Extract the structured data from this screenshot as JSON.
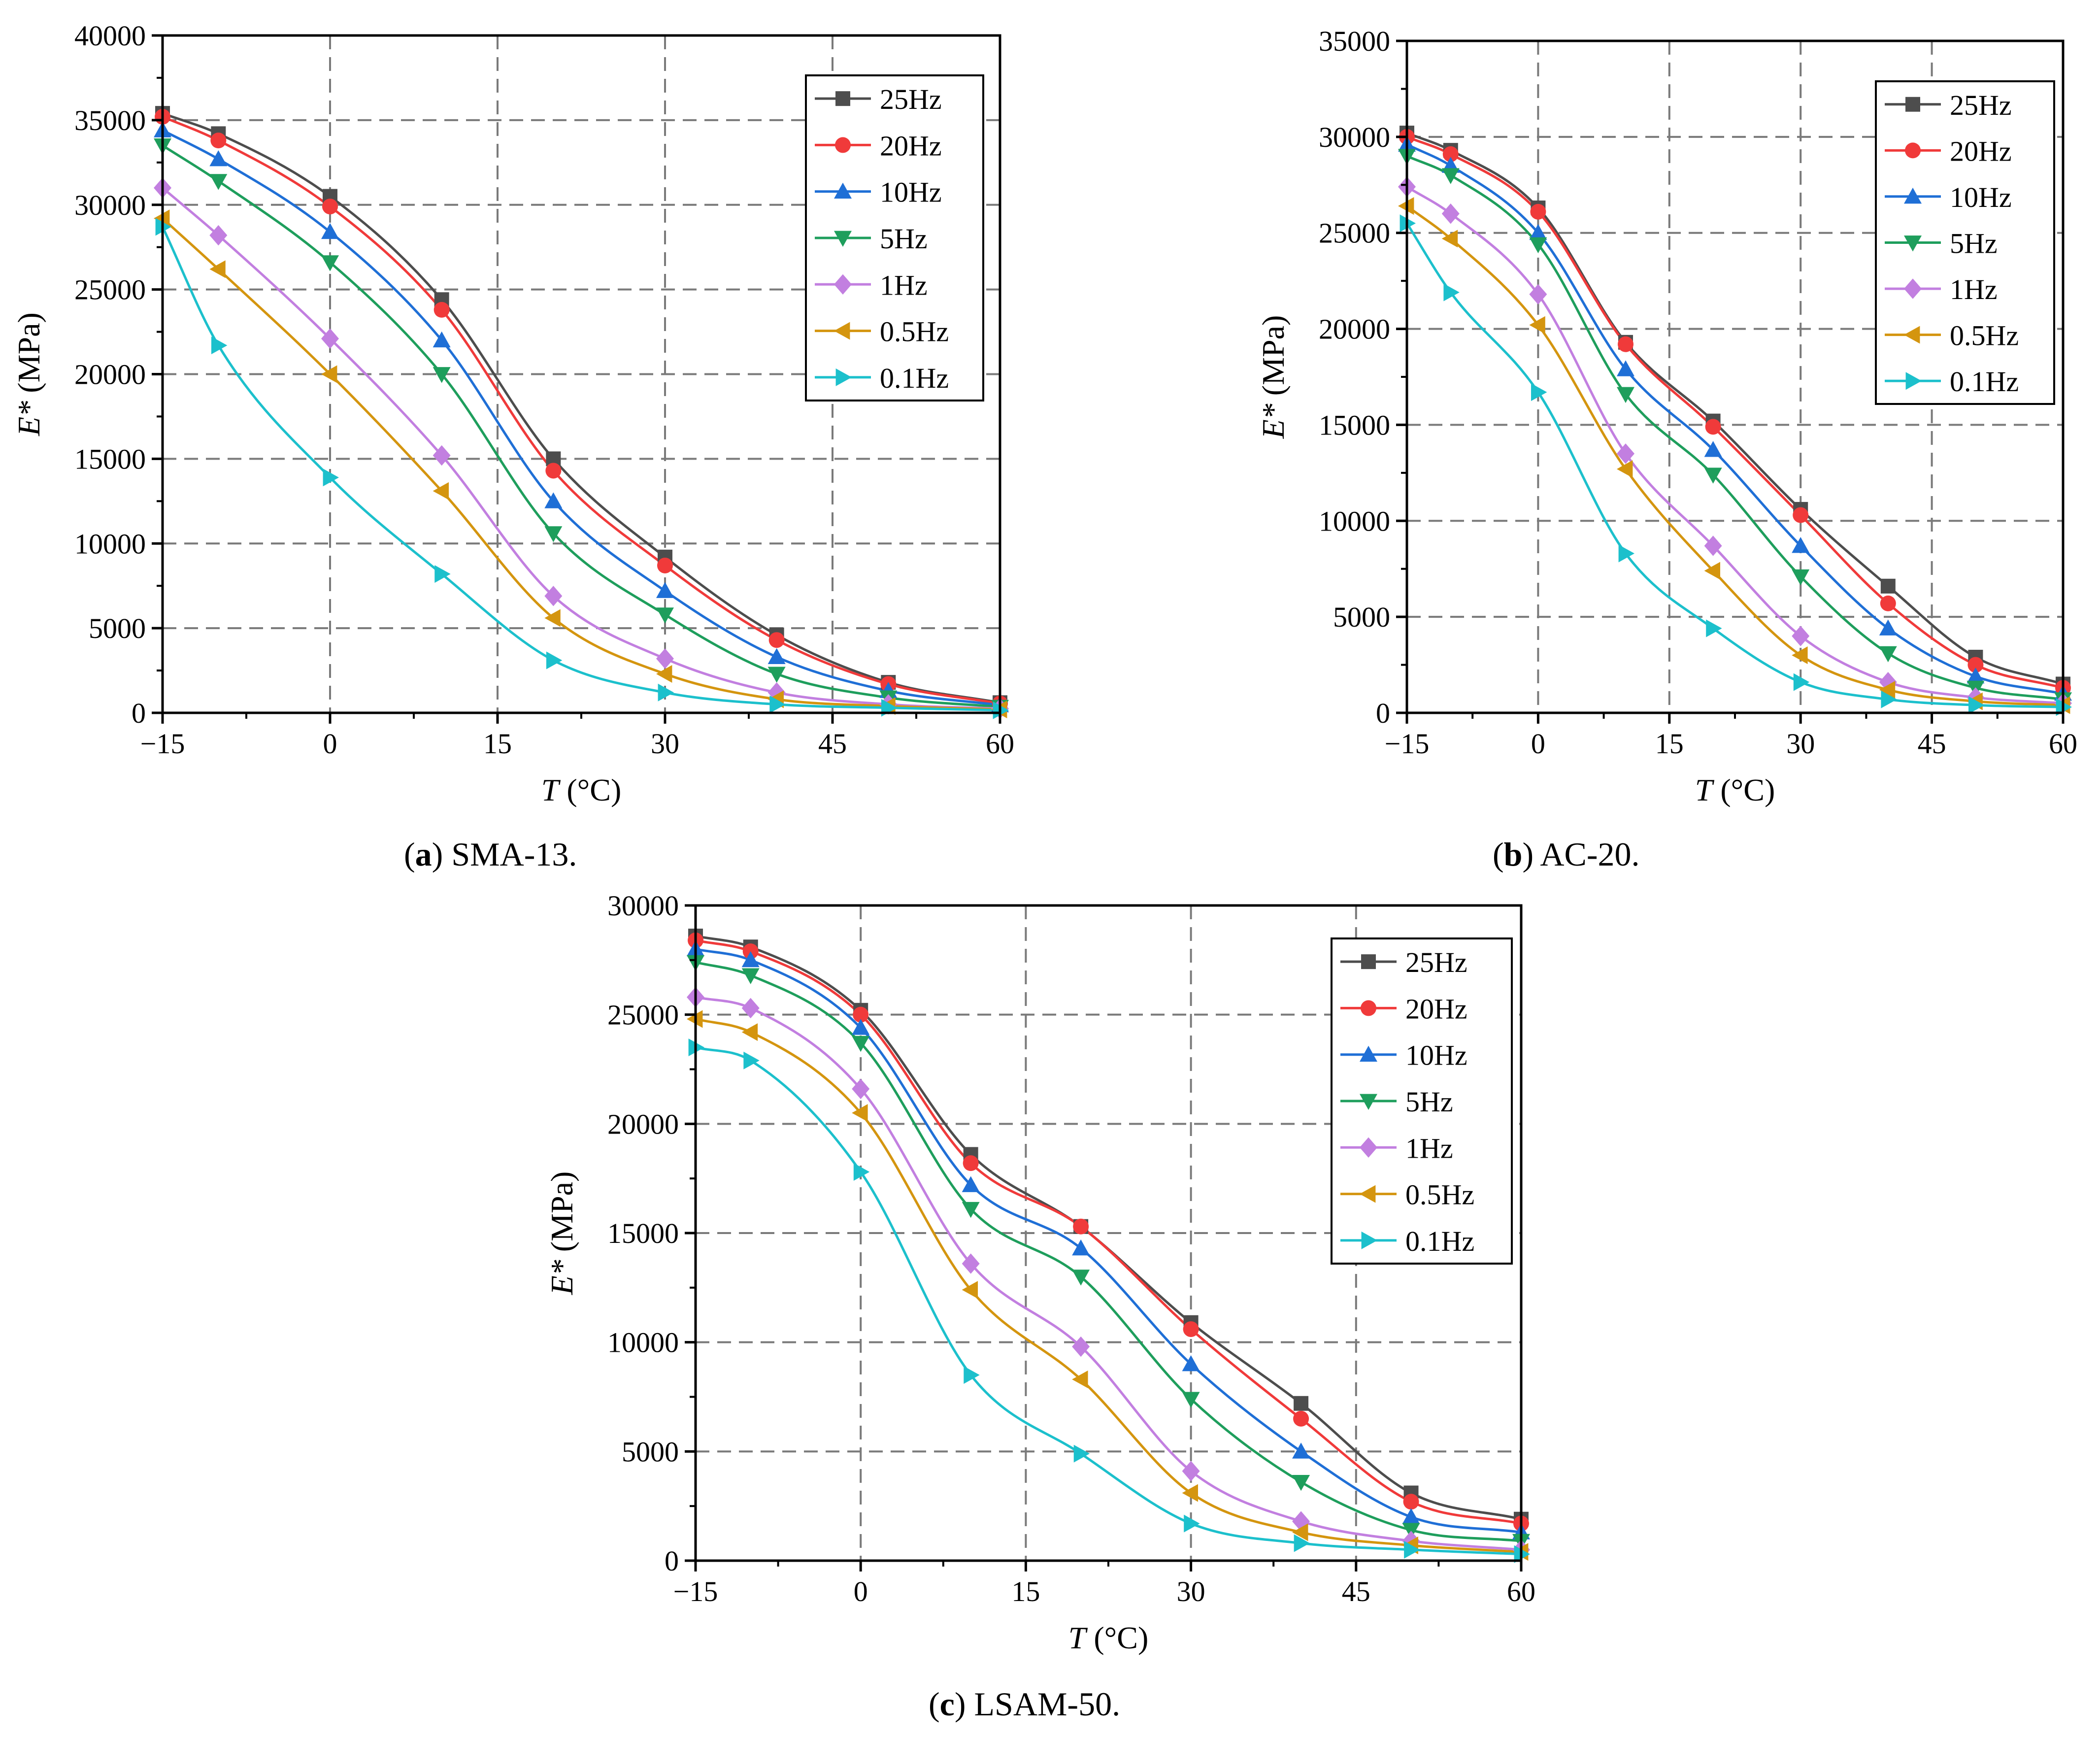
{
  "figure": {
    "legend_labels": [
      "25Hz",
      "20Hz",
      "10Hz",
      "5Hz",
      "1Hz",
      "0.5Hz",
      "0.1Hz"
    ],
    "series_styles": [
      {
        "name": "25Hz",
        "color": "#4d4d4d",
        "marker": "square"
      },
      {
        "name": "20Hz",
        "color": "#f03a3a",
        "marker": "circle"
      },
      {
        "name": "10Hz",
        "color": "#1f6fd6",
        "marker": "triangle-up"
      },
      {
        "name": "5Hz",
        "color": "#1e9e5c",
        "marker": "triangle-down"
      },
      {
        "name": "1Hz",
        "color": "#c27fe0",
        "marker": "diamond"
      },
      {
        "name": "0.5Hz",
        "color": "#d4950f",
        "marker": "triangle-left"
      },
      {
        "name": "0.1Hz",
        "color": "#1cc0cc",
        "marker": "triangle-right"
      }
    ]
  },
  "chart_data": [
    {
      "type": "line",
      "panel": "a",
      "caption_letter": "a",
      "caption_text": " SMA-13.",
      "xlabel_italic": "T",
      "xlabel_unit": " (°C)",
      "ylabel_italic": "E*",
      "ylabel_unit": " (MPa)",
      "x": [
        -15,
        -10,
        0,
        10,
        20,
        30,
        40,
        50,
        60
      ],
      "xlim": [
        -15,
        60
      ],
      "ylim": [
        0,
        40000
      ],
      "xticks": [
        -15,
        0,
        15,
        30,
        45,
        60
      ],
      "xtick_labels": [
        "−15",
        "0",
        "15",
        "30",
        "45",
        "60"
      ],
      "yticks": [
        0,
        5000,
        10000,
        15000,
        20000,
        25000,
        30000,
        35000,
        40000
      ],
      "ytick_labels": [
        "0",
        "5000",
        "10000",
        "15000",
        "20000",
        "25000",
        "30000",
        "35000",
        "40000"
      ],
      "grid": true,
      "legend_position": "top-right",
      "series": [
        {
          "name": "25Hz",
          "values": [
            35400,
            34200,
            30500,
            24400,
            15000,
            9200,
            4600,
            1800,
            600
          ]
        },
        {
          "name": "20Hz",
          "values": [
            35200,
            33800,
            29900,
            23800,
            14300,
            8700,
            4300,
            1700,
            550
          ]
        },
        {
          "name": "10Hz",
          "values": [
            34400,
            32700,
            28400,
            22000,
            12500,
            7200,
            3300,
            1300,
            450
          ]
        },
        {
          "name": "5Hz",
          "values": [
            33500,
            31400,
            26600,
            20000,
            10600,
            5800,
            2300,
            900,
            350
          ]
        },
        {
          "name": "1Hz",
          "values": [
            31000,
            28200,
            22100,
            15200,
            6900,
            3200,
            1200,
            500,
            250
          ]
        },
        {
          "name": "0.5Hz",
          "values": [
            29200,
            26200,
            20000,
            13100,
            5600,
            2300,
            800,
            400,
            200
          ]
        },
        {
          "name": "0.1Hz",
          "values": [
            28700,
            21700,
            13900,
            8200,
            3100,
            1200,
            500,
            300,
            150
          ]
        }
      ]
    },
    {
      "type": "line",
      "panel": "b",
      "caption_letter": "b",
      "caption_text": " AC-20.",
      "xlabel_italic": "T",
      "xlabel_unit": " (°C)",
      "ylabel_italic": "E*",
      "ylabel_unit": " (MPa)",
      "x": [
        -15,
        -10,
        0,
        10,
        20,
        30,
        40,
        50,
        60
      ],
      "xlim": [
        -15,
        60
      ],
      "ylim": [
        0,
        35000
      ],
      "xticks": [
        -15,
        0,
        15,
        30,
        45,
        60
      ],
      "xtick_labels": [
        "−15",
        "0",
        "15",
        "30",
        "45",
        "60"
      ],
      "yticks": [
        0,
        5000,
        10000,
        15000,
        20000,
        25000,
        30000,
        35000
      ],
      "ytick_labels": [
        "0",
        "5000",
        "10000",
        "15000",
        "20000",
        "25000",
        "30000",
        "35000"
      ],
      "grid": true,
      "legend_position": "top-right",
      "series": [
        {
          "name": "25Hz",
          "values": [
            30200,
            29300,
            26300,
            19300,
            15200,
            10600,
            6600,
            2900,
            1500
          ]
        },
        {
          "name": "20Hz",
          "values": [
            30000,
            29100,
            26100,
            19200,
            14900,
            10300,
            5700,
            2500,
            1300
          ]
        },
        {
          "name": "10Hz",
          "values": [
            29600,
            28500,
            25000,
            17900,
            13700,
            8700,
            4400,
            1900,
            1000
          ]
        },
        {
          "name": "5Hz",
          "values": [
            29000,
            28000,
            24400,
            16600,
            12400,
            7100,
            3100,
            1300,
            700
          ]
        },
        {
          "name": "1Hz",
          "values": [
            27400,
            26000,
            21800,
            13500,
            8700,
            4000,
            1600,
            800,
            500
          ]
        },
        {
          "name": "0.5Hz",
          "values": [
            26400,
            24700,
            20200,
            12700,
            7400,
            3000,
            1200,
            600,
            400
          ]
        },
        {
          "name": "0.1Hz",
          "values": [
            25500,
            21900,
            16700,
            8300,
            4400,
            1600,
            700,
            400,
            300
          ]
        }
      ]
    },
    {
      "type": "line",
      "panel": "c",
      "caption_letter": "c",
      "caption_text": " LSAM-50.",
      "xlabel_italic": "T",
      "xlabel_unit": " (°C)",
      "ylabel_italic": "E*",
      "ylabel_unit": " (MPa)",
      "x": [
        -15,
        -10,
        0,
        10,
        20,
        30,
        40,
        50,
        60
      ],
      "xlim": [
        -15,
        60
      ],
      "ylim": [
        0,
        30000
      ],
      "xticks": [
        -15,
        0,
        15,
        30,
        45,
        60
      ],
      "xtick_labels": [
        "−15",
        "0",
        "15",
        "30",
        "45",
        "60"
      ],
      "yticks": [
        0,
        5000,
        10000,
        15000,
        20000,
        25000,
        30000
      ],
      "ytick_labels": [
        "0",
        "5000",
        "10000",
        "15000",
        "20000",
        "25000",
        "30000"
      ],
      "grid": true,
      "legend_position": "top-right",
      "series": [
        {
          "name": "25Hz",
          "values": [
            28600,
            28100,
            25200,
            18600,
            15300,
            10900,
            7200,
            3100,
            1900
          ]
        },
        {
          "name": "20Hz",
          "values": [
            28400,
            27900,
            25000,
            18200,
            15300,
            10600,
            6500,
            2700,
            1700
          ]
        },
        {
          "name": "10Hz",
          "values": [
            28000,
            27500,
            24400,
            17200,
            14300,
            9000,
            5000,
            2000,
            1300
          ]
        },
        {
          "name": "5Hz",
          "values": [
            27400,
            26800,
            23700,
            16100,
            13000,
            7400,
            3600,
            1400,
            900
          ]
        },
        {
          "name": "1Hz",
          "values": [
            25800,
            25300,
            21600,
            13600,
            9800,
            4100,
            1800,
            900,
            500
          ]
        },
        {
          "name": "0.5Hz",
          "values": [
            24800,
            24200,
            20500,
            12400,
            8300,
            3100,
            1300,
            700,
            400
          ]
        },
        {
          "name": "0.1Hz",
          "values": [
            23500,
            22900,
            17800,
            8500,
            4900,
            1700,
            800,
            500,
            300
          ]
        }
      ]
    }
  ]
}
